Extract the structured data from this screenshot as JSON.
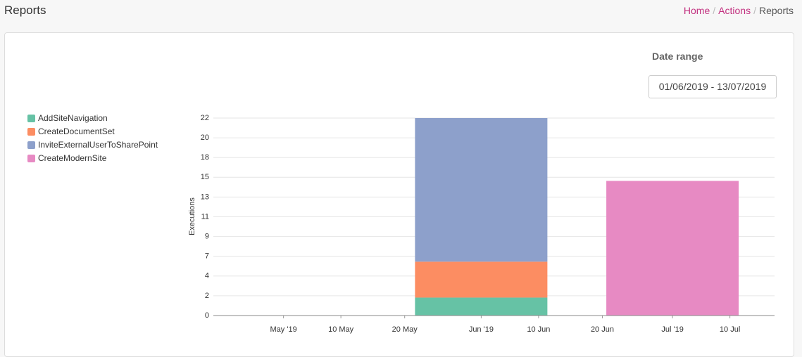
{
  "header": {
    "title": "Reports",
    "breadcrumb": [
      "Home",
      "Actions",
      "Reports"
    ]
  },
  "filters": {
    "date_range_label": "Date range",
    "date_range_value": "01/06/2019 - 13/07/2019"
  },
  "chart_data": {
    "type": "bar",
    "stacked": true,
    "y_label": "Executions",
    "x": [
      "2019-06",
      "2019-07"
    ],
    "series": [
      {
        "name": "AddSiteNavigation",
        "color": "#66c2a5",
        "values": [
          2,
          0
        ]
      },
      {
        "name": "CreateDocumentSet",
        "color": "#fc8d62",
        "values": [
          4,
          0
        ]
      },
      {
        "name": "InviteExternalUserToSharePoint",
        "color": "#8da0cb",
        "values": [
          16,
          0
        ]
      },
      {
        "name": "CreateModernSite",
        "color": "#e78ac3",
        "values": [
          0,
          15
        ]
      }
    ],
    "xlim": [
      "2019-04-20",
      "2019-07-17"
    ],
    "xticks": [
      {
        "value": "2019-05-01",
        "label": "May '19"
      },
      {
        "value": "2019-05-10",
        "label": "10 May"
      },
      {
        "value": "2019-05-20",
        "label": "20 May"
      },
      {
        "value": "2019-06-01",
        "label": "Jun '19"
      },
      {
        "value": "2019-06-10",
        "label": "10 Jun"
      },
      {
        "value": "2019-06-20",
        "label": "20 Jun"
      },
      {
        "value": "2019-07-01",
        "label": "Jul '19"
      },
      {
        "value": "2019-07-10",
        "label": "10 Jul"
      }
    ],
    "ylim": [
      0,
      22
    ],
    "yticks": [
      0,
      {
        "value": 2.2,
        "label": "2"
      },
      {
        "value": 4.4,
        "label": "4"
      },
      {
        "value": 6.6,
        "label": "7"
      },
      {
        "value": 8.8,
        "label": "9"
      },
      11,
      {
        "value": 13.2,
        "label": "13"
      },
      {
        "value": 15.4,
        "label": "15"
      },
      {
        "value": 17.6,
        "label": "18"
      },
      {
        "value": 19.8,
        "label": "20"
      },
      22
    ],
    "grid": true,
    "legend": "left"
  }
}
